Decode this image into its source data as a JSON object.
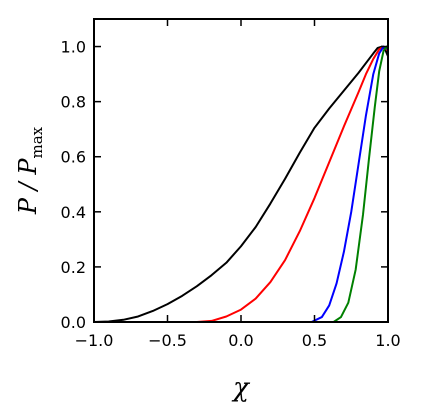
{
  "chart_data": {
    "type": "line",
    "title": "",
    "xlabel": "χ",
    "ylabel": "P / P",
    "ylabel_sub": "max",
    "xlim": [
      -1.0,
      1.0
    ],
    "ylim": [
      0.0,
      1.1
    ],
    "xticks": [
      -1.0,
      -0.5,
      0.0,
      0.5,
      1.0
    ],
    "xtick_labels": [
      "−1.0",
      "−0.5",
      "0.0",
      "0.5",
      "1.0"
    ],
    "yticks": [
      0.0,
      0.2,
      0.4,
      0.6,
      0.8,
      1.0
    ],
    "ytick_labels": [
      "0.0",
      "0.2",
      "0.4",
      "0.6",
      "0.8",
      "1.0"
    ],
    "grid": false,
    "legend": "none",
    "series": [
      {
        "color": "#000000",
        "x": [
          -1.0,
          -0.9,
          -0.8,
          -0.7,
          -0.6,
          -0.5,
          -0.4,
          -0.3,
          -0.2,
          -0.1,
          0.0,
          0.1,
          0.2,
          0.3,
          0.4,
          0.5,
          0.6,
          0.7,
          0.8,
          0.85,
          0.9,
          0.93,
          0.96,
          0.98,
          1.0
        ],
        "y": [
          0.0,
          0.002,
          0.008,
          0.02,
          0.04,
          0.065,
          0.095,
          0.13,
          0.17,
          0.215,
          0.275,
          0.345,
          0.43,
          0.52,
          0.615,
          0.705,
          0.775,
          0.84,
          0.905,
          0.94,
          0.975,
          0.995,
          1.0,
          0.99,
          0.965
        ]
      },
      {
        "color": "#ff0000",
        "x": [
          -0.3,
          -0.2,
          -0.1,
          0.0,
          0.1,
          0.2,
          0.3,
          0.4,
          0.5,
          0.6,
          0.7,
          0.8,
          0.85,
          0.9,
          0.94,
          0.97,
          1.0
        ],
        "y": [
          0.0,
          0.004,
          0.02,
          0.045,
          0.085,
          0.145,
          0.225,
          0.33,
          0.45,
          0.58,
          0.71,
          0.835,
          0.9,
          0.955,
          0.99,
          1.0,
          0.985
        ]
      },
      {
        "color": "#0000ff",
        "x": [
          0.48,
          0.55,
          0.6,
          0.65,
          0.7,
          0.75,
          0.8,
          0.85,
          0.9,
          0.94,
          0.97,
          1.0
        ],
        "y": [
          0.0,
          0.018,
          0.06,
          0.14,
          0.255,
          0.4,
          0.575,
          0.75,
          0.9,
          0.975,
          1.0,
          0.99
        ]
      },
      {
        "color": "#008000",
        "x": [
          0.63,
          0.68,
          0.73,
          0.78,
          0.83,
          0.87,
          0.91,
          0.94,
          0.97,
          0.99,
          1.0
        ],
        "y": [
          0.0,
          0.018,
          0.07,
          0.19,
          0.39,
          0.59,
          0.78,
          0.91,
          0.985,
          1.0,
          0.99
        ]
      }
    ]
  }
}
